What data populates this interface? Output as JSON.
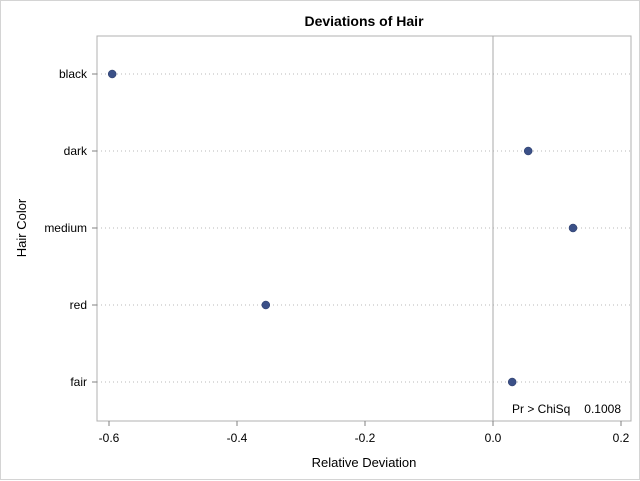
{
  "chart_data": {
    "type": "scatter",
    "title": "Deviations of Hair",
    "xlabel": "Relative Deviation",
    "ylabel": "Hair Color",
    "xlim": [
      -0.6,
      0.2
    ],
    "x_ticks": [
      "-0.6",
      "-0.4",
      "-0.2",
      "0.0",
      "0.2"
    ],
    "x_tick_values": [
      -0.6,
      -0.4,
      -0.2,
      0.0,
      0.2
    ],
    "reference_line_x": 0.0,
    "grid": "horizontal dotted",
    "categories": [
      "black",
      "dark",
      "medium",
      "red",
      "fair"
    ],
    "values": [
      -0.595,
      0.055,
      0.125,
      -0.355,
      0.03
    ],
    "marker_color": "#3b5087",
    "annotation": {
      "label": "Pr > ChiSq",
      "value": "0.1008",
      "position": "bottom-right"
    }
  }
}
